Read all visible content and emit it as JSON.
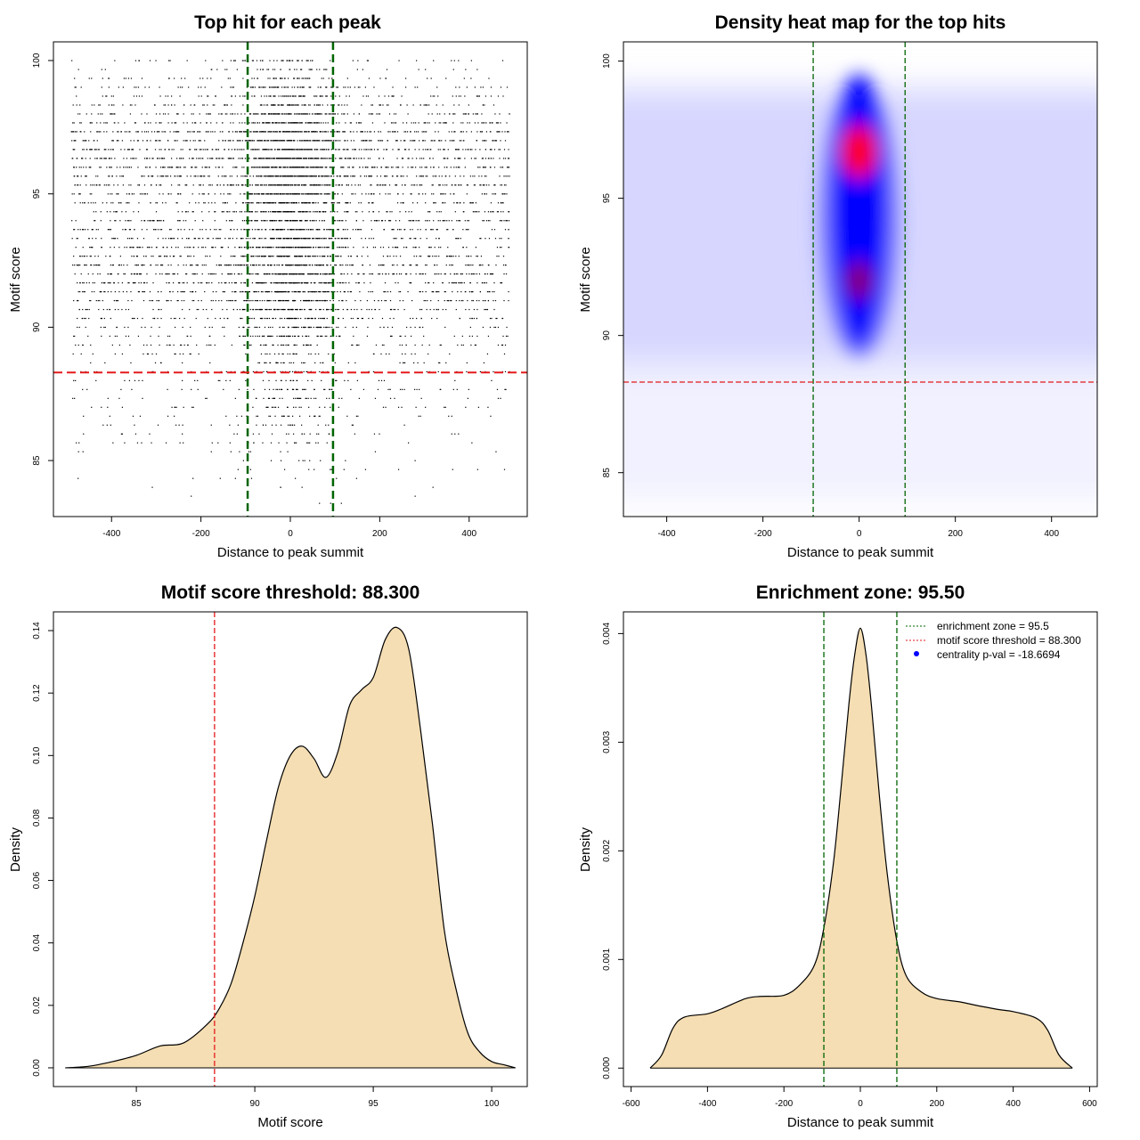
{
  "chart_data": [
    {
      "type": "scatter",
      "title": "Top hit for each peak",
      "xlabel": "Distance to peak summit",
      "ylabel": "Motif score",
      "xlim": [
        -530,
        530
      ],
      "ylim": [
        82.9,
        100.7
      ],
      "xticks": [
        -400,
        -200,
        0,
        200,
        400
      ],
      "yticks": [
        85,
        90,
        95,
        100
      ],
      "vlines": [
        -95.5,
        95.5
      ],
      "hline": 88.3,
      "points": {
        "description_free": true,
        "x_range": [
          -490,
          490
        ],
        "y_range": [
          83.4,
          100.0
        ],
        "center_concentration_x": 0,
        "density_modes_y": [
          97,
          92
        ]
      },
      "grid": false
    },
    {
      "type": "heatmap",
      "title": "Density heat map for the top hits",
      "xlabel": "Distance to peak summit",
      "ylabel": "Motif score",
      "xlim": [
        -490,
        495
      ],
      "ylim": [
        83.4,
        100.7
      ],
      "xticks": [
        -400,
        -200,
        0,
        200,
        400
      ],
      "yticks": [
        85,
        90,
        95,
        100
      ],
      "vlines": [
        -95.5,
        95.5
      ],
      "hline": 88.3,
      "hot_spots": [
        {
          "x": 0,
          "y": 96.7,
          "level": 1.0
        },
        {
          "x": 0,
          "y": 92.0,
          "level": 0.8
        }
      ],
      "colors": [
        "#ffffff",
        "#0000ff",
        "#ff0000"
      ]
    },
    {
      "type": "area",
      "title": "Motif score threshold: 88.300",
      "xlabel": "Motif score",
      "ylabel": "Density",
      "xlim": [
        81.5,
        101.5
      ],
      "ylim": [
        -0.006,
        0.146
      ],
      "xticks": [
        85,
        90,
        95,
        100
      ],
      "yticks": [
        0.0,
        0.02,
        0.04,
        0.06,
        0.08,
        0.1,
        0.12,
        0.14
      ],
      "ytick_labels": [
        "0.00",
        "0.02",
        "0.04",
        "0.06",
        "0.08",
        "0.10",
        "0.12",
        "0.14"
      ],
      "vline": 88.3,
      "x": [
        82.0,
        83.0,
        84.0,
        85.0,
        86.0,
        87.0,
        88.0,
        88.5,
        89.0,
        89.5,
        90.0,
        90.5,
        91.0,
        91.5,
        92.0,
        92.5,
        93.0,
        93.5,
        94.0,
        94.5,
        95.0,
        95.5,
        96.0,
        96.5,
        97.0,
        97.5,
        98.0,
        98.5,
        99.0,
        99.5,
        100.0,
        100.5,
        101.0
      ],
      "y": [
        0.0,
        0.0005,
        0.002,
        0.004,
        0.007,
        0.008,
        0.014,
        0.019,
        0.027,
        0.04,
        0.055,
        0.073,
        0.09,
        0.1,
        0.103,
        0.099,
        0.093,
        0.101,
        0.116,
        0.121,
        0.125,
        0.137,
        0.141,
        0.134,
        0.108,
        0.078,
        0.044,
        0.025,
        0.011,
        0.005,
        0.002,
        0.001,
        0.0
      ],
      "fill": "#f5deb3"
    },
    {
      "type": "area",
      "title": "Enrichment zone: 95.50",
      "xlabel": "Distance to peak summit",
      "ylabel": "Density",
      "xlim": [
        -620,
        620
      ],
      "ylim": [
        -0.00017,
        0.0042
      ],
      "xticks": [
        -600,
        -400,
        -200,
        0,
        200,
        400,
        600
      ],
      "yticks": [
        0.0,
        0.001,
        0.002,
        0.003,
        0.004
      ],
      "ytick_labels": [
        "0.000",
        "0.001",
        "0.002",
        "0.003",
        "0.004"
      ],
      "vlines": [
        -95.5,
        95.5
      ],
      "x": [
        -550,
        -520,
        -490,
        -460,
        -400,
        -360,
        -300,
        -260,
        -200,
        -160,
        -120,
        -95,
        -70,
        -50,
        -30,
        -15,
        0,
        15,
        30,
        50,
        70,
        95,
        120,
        160,
        200,
        260,
        300,
        360,
        400,
        460,
        490,
        520,
        555
      ],
      "y": [
        0.0,
        0.00012,
        0.00037,
        0.00047,
        0.0005,
        0.00055,
        0.00064,
        0.00066,
        0.00067,
        0.00076,
        0.00095,
        0.0013,
        0.0019,
        0.0026,
        0.00335,
        0.0038,
        0.00405,
        0.0038,
        0.0033,
        0.0025,
        0.0018,
        0.00118,
        0.00085,
        0.0007,
        0.00064,
        0.00061,
        0.00058,
        0.00054,
        0.00052,
        0.00046,
        0.00035,
        0.00012,
        0.0
      ],
      "fill": "#f5deb3",
      "legend": {
        "placement": "top-right",
        "entries": [
          {
            "label": "enrichment zone = 95.5",
            "color": "#006400",
            "style": "dotted-line"
          },
          {
            "label": "motif score threshold = 88.300",
            "color": "#e41a1c",
            "style": "dotted-line"
          },
          {
            "label": "centrality p-val = -18.6694",
            "color": "#0000ff",
            "style": "point"
          }
        ]
      }
    }
  ]
}
